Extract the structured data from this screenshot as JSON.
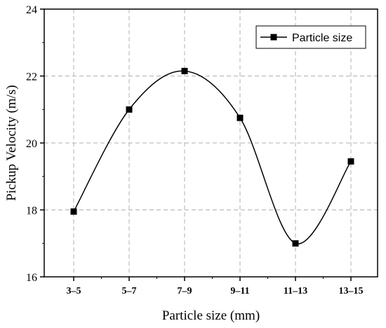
{
  "chart_data": {
    "type": "line",
    "categories": [
      "3–5",
      "5–7",
      "7–9",
      "9–11",
      "11–13",
      "13–15"
    ],
    "series": [
      {
        "name": "Particle size",
        "values": [
          17.95,
          21.0,
          22.15,
          20.75,
          17.0,
          19.45
        ]
      }
    ],
    "xlabel": "Particle size (mm)",
    "ylabel": "Pickup Velocity (m/s)",
    "ylim": [
      16,
      24
    ],
    "yticks": [
      "16",
      "18",
      "20",
      "22",
      "24"
    ],
    "grid": true,
    "smooth": true,
    "marker": "square",
    "legend_position": "top-right",
    "colors": {
      "line": "#000000",
      "grid": "#b0b0b0",
      "marker": "#000000"
    }
  }
}
